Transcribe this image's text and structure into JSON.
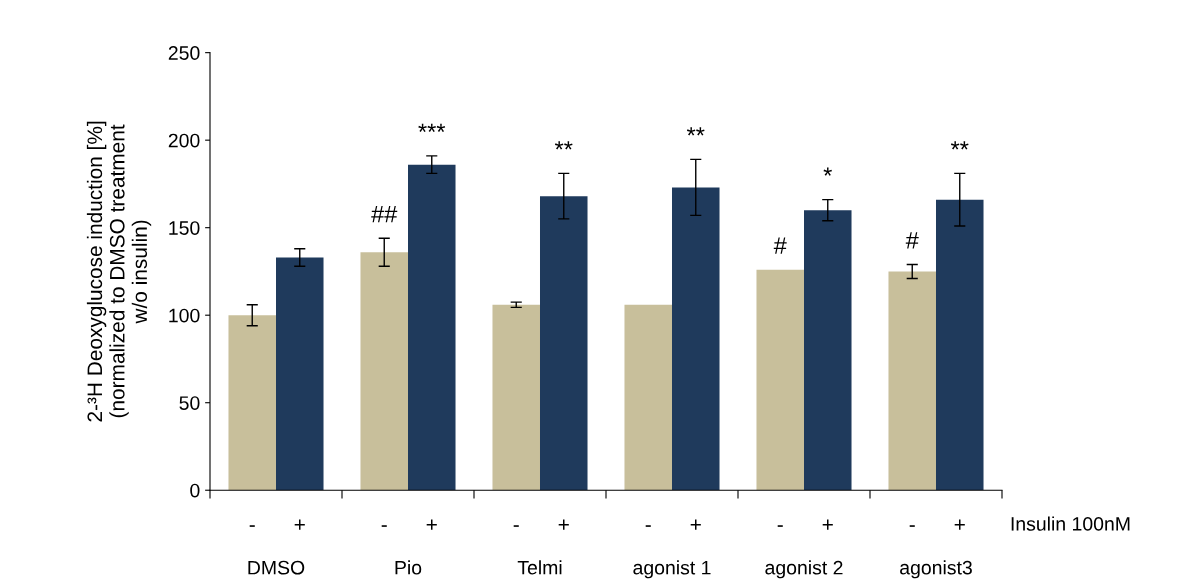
{
  "chart_data": {
    "type": "bar",
    "ylabel": "2-³H Deoxyglucose induction [%]\n(normalized to DMSO treatment\nw/o insulin)",
    "categories": [
      "DMSO",
      "Pio",
      "Telmi",
      "agonist 1",
      "agonist 2",
      "agonist3"
    ],
    "series": [
      {
        "name": "-",
        "color": "#c8bf9b",
        "values": [
          100,
          136,
          106,
          106,
          126,
          125
        ],
        "errors": [
          6,
          8,
          1.5,
          null,
          null,
          4
        ]
      },
      {
        "name": "+",
        "color": "#1f3a5c",
        "values": [
          133,
          186,
          168,
          173,
          160,
          166
        ],
        "errors": [
          5,
          5,
          13,
          16,
          6,
          15
        ]
      }
    ],
    "ylim": [
      0,
      250
    ],
    "yticks": [
      0,
      50,
      100,
      150,
      200,
      250
    ],
    "grid": false,
    "legend": false,
    "annotations": [
      "Insulin 100nM",
      {
        "text": "##",
        "x": "Pio",
        "y": 136
      },
      {
        "text": "***",
        "x": "Pio",
        "y": 186
      },
      {
        "text": "**",
        "x": "Telmi",
        "y": 168
      },
      {
        "text": "**",
        "x": "agonist 1",
        "y": 173
      },
      {
        "text": "#",
        "x": "agonist 2",
        "y": 126
      },
      {
        "text": "*",
        "x": "agonist 2",
        "y": 160
      },
      {
        "text": "#",
        "x": "agonist3",
        "y": 125
      },
      {
        "text": "**",
        "x": "agonist3",
        "y": 166
      }
    ]
  }
}
